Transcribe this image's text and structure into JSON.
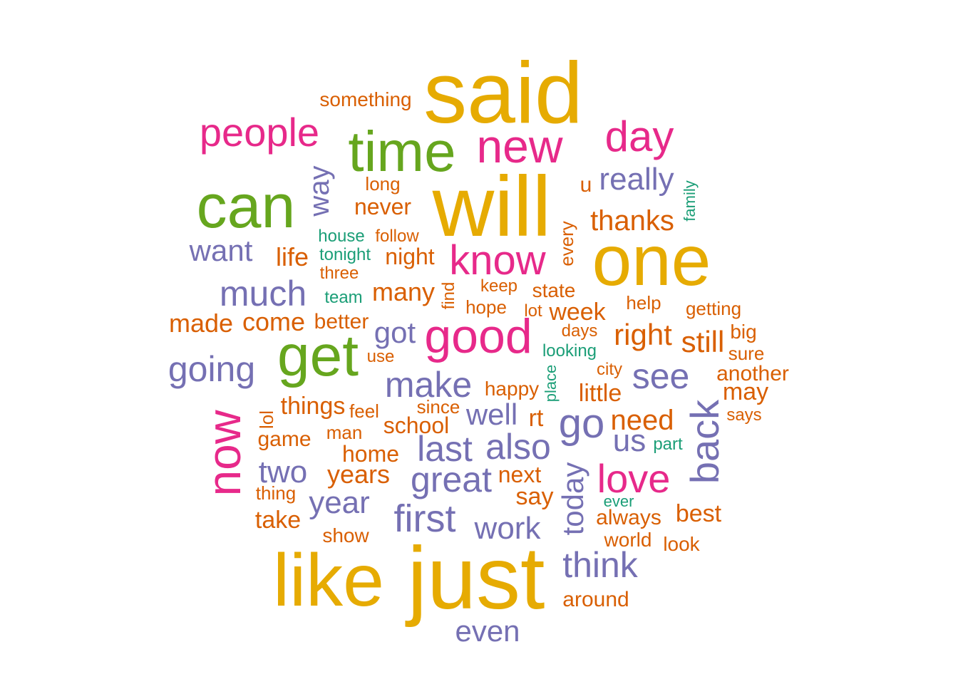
{
  "palette": {
    "gold": "#e6ab02",
    "pink": "#e7298a",
    "green": "#66a61e",
    "purple": "#7570b3",
    "orange": "#d95f02",
    "teal": "#1b9e77"
  },
  "words": [
    {
      "text": "said",
      "color": "gold"
    },
    {
      "text": "will",
      "color": "gold"
    },
    {
      "text": "one",
      "color": "gold"
    },
    {
      "text": "like",
      "color": "gold"
    },
    {
      "text": "just",
      "color": "gold"
    },
    {
      "text": "time",
      "color": "green"
    },
    {
      "text": "can",
      "color": "green"
    },
    {
      "text": "get",
      "color": "green"
    },
    {
      "text": "new",
      "color": "pink"
    },
    {
      "text": "people",
      "color": "pink"
    },
    {
      "text": "day",
      "color": "pink"
    },
    {
      "text": "know",
      "color": "pink"
    },
    {
      "text": "good",
      "color": "pink"
    },
    {
      "text": "now",
      "color": "pink"
    },
    {
      "text": "love",
      "color": "pink"
    },
    {
      "text": "something",
      "color": "orange"
    },
    {
      "text": "way",
      "color": "purple"
    },
    {
      "text": "long",
      "color": "orange"
    },
    {
      "text": "never",
      "color": "orange"
    },
    {
      "text": "u",
      "color": "orange"
    },
    {
      "text": "really",
      "color": "purple"
    },
    {
      "text": "family",
      "color": "teal"
    },
    {
      "text": "thanks",
      "color": "orange"
    },
    {
      "text": "every",
      "color": "orange"
    },
    {
      "text": "house",
      "color": "teal"
    },
    {
      "text": "follow",
      "color": "orange"
    },
    {
      "text": "want",
      "color": "purple"
    },
    {
      "text": "life",
      "color": "orange"
    },
    {
      "text": "tonight",
      "color": "teal"
    },
    {
      "text": "night",
      "color": "orange"
    },
    {
      "text": "three",
      "color": "orange"
    },
    {
      "text": "much",
      "color": "purple"
    },
    {
      "text": "team",
      "color": "teal"
    },
    {
      "text": "many",
      "color": "orange"
    },
    {
      "text": "find",
      "color": "orange"
    },
    {
      "text": "keep",
      "color": "orange"
    },
    {
      "text": "state",
      "color": "orange"
    },
    {
      "text": "hope",
      "color": "orange"
    },
    {
      "text": "lot",
      "color": "orange"
    },
    {
      "text": "week",
      "color": "orange"
    },
    {
      "text": "help",
      "color": "orange"
    },
    {
      "text": "getting",
      "color": "orange"
    },
    {
      "text": "made",
      "color": "orange"
    },
    {
      "text": "come",
      "color": "orange"
    },
    {
      "text": "better",
      "color": "orange"
    },
    {
      "text": "got",
      "color": "purple"
    },
    {
      "text": "days",
      "color": "orange"
    },
    {
      "text": "right",
      "color": "orange"
    },
    {
      "text": "still",
      "color": "orange"
    },
    {
      "text": "big",
      "color": "orange"
    },
    {
      "text": "going",
      "color": "purple"
    },
    {
      "text": "use",
      "color": "orange"
    },
    {
      "text": "looking",
      "color": "teal"
    },
    {
      "text": "sure",
      "color": "orange"
    },
    {
      "text": "make",
      "color": "purple"
    },
    {
      "text": "place",
      "color": "teal"
    },
    {
      "text": "city",
      "color": "orange"
    },
    {
      "text": "see",
      "color": "purple"
    },
    {
      "text": "another",
      "color": "orange"
    },
    {
      "text": "happy",
      "color": "orange"
    },
    {
      "text": "little",
      "color": "orange"
    },
    {
      "text": "may",
      "color": "orange"
    },
    {
      "text": "things",
      "color": "orange"
    },
    {
      "text": "feel",
      "color": "orange"
    },
    {
      "text": "since",
      "color": "orange"
    },
    {
      "text": "well",
      "color": "purple"
    },
    {
      "text": "rt",
      "color": "orange"
    },
    {
      "text": "back",
      "color": "purple"
    },
    {
      "text": "lol",
      "color": "orange"
    },
    {
      "text": "says",
      "color": "orange"
    },
    {
      "text": "school",
      "color": "orange"
    },
    {
      "text": "go",
      "color": "purple"
    },
    {
      "text": "need",
      "color": "orange"
    },
    {
      "text": "man",
      "color": "orange"
    },
    {
      "text": "game",
      "color": "orange"
    },
    {
      "text": "last",
      "color": "purple"
    },
    {
      "text": "also",
      "color": "purple"
    },
    {
      "text": "us",
      "color": "purple"
    },
    {
      "text": "part",
      "color": "teal"
    },
    {
      "text": "home",
      "color": "orange"
    },
    {
      "text": "two",
      "color": "purple"
    },
    {
      "text": "years",
      "color": "orange"
    },
    {
      "text": "great",
      "color": "purple"
    },
    {
      "text": "next",
      "color": "orange"
    },
    {
      "text": "today",
      "color": "purple"
    },
    {
      "text": "thing",
      "color": "orange"
    },
    {
      "text": "say",
      "color": "orange"
    },
    {
      "text": "ever",
      "color": "teal"
    },
    {
      "text": "year",
      "color": "purple"
    },
    {
      "text": "first",
      "color": "purple"
    },
    {
      "text": "best",
      "color": "orange"
    },
    {
      "text": "take",
      "color": "orange"
    },
    {
      "text": "always",
      "color": "orange"
    },
    {
      "text": "work",
      "color": "purple"
    },
    {
      "text": "show",
      "color": "orange"
    },
    {
      "text": "world",
      "color": "orange"
    },
    {
      "text": "look",
      "color": "orange"
    },
    {
      "text": "think",
      "color": "purple"
    },
    {
      "text": "around",
      "color": "orange"
    },
    {
      "text": "even",
      "color": "purple"
    }
  ]
}
